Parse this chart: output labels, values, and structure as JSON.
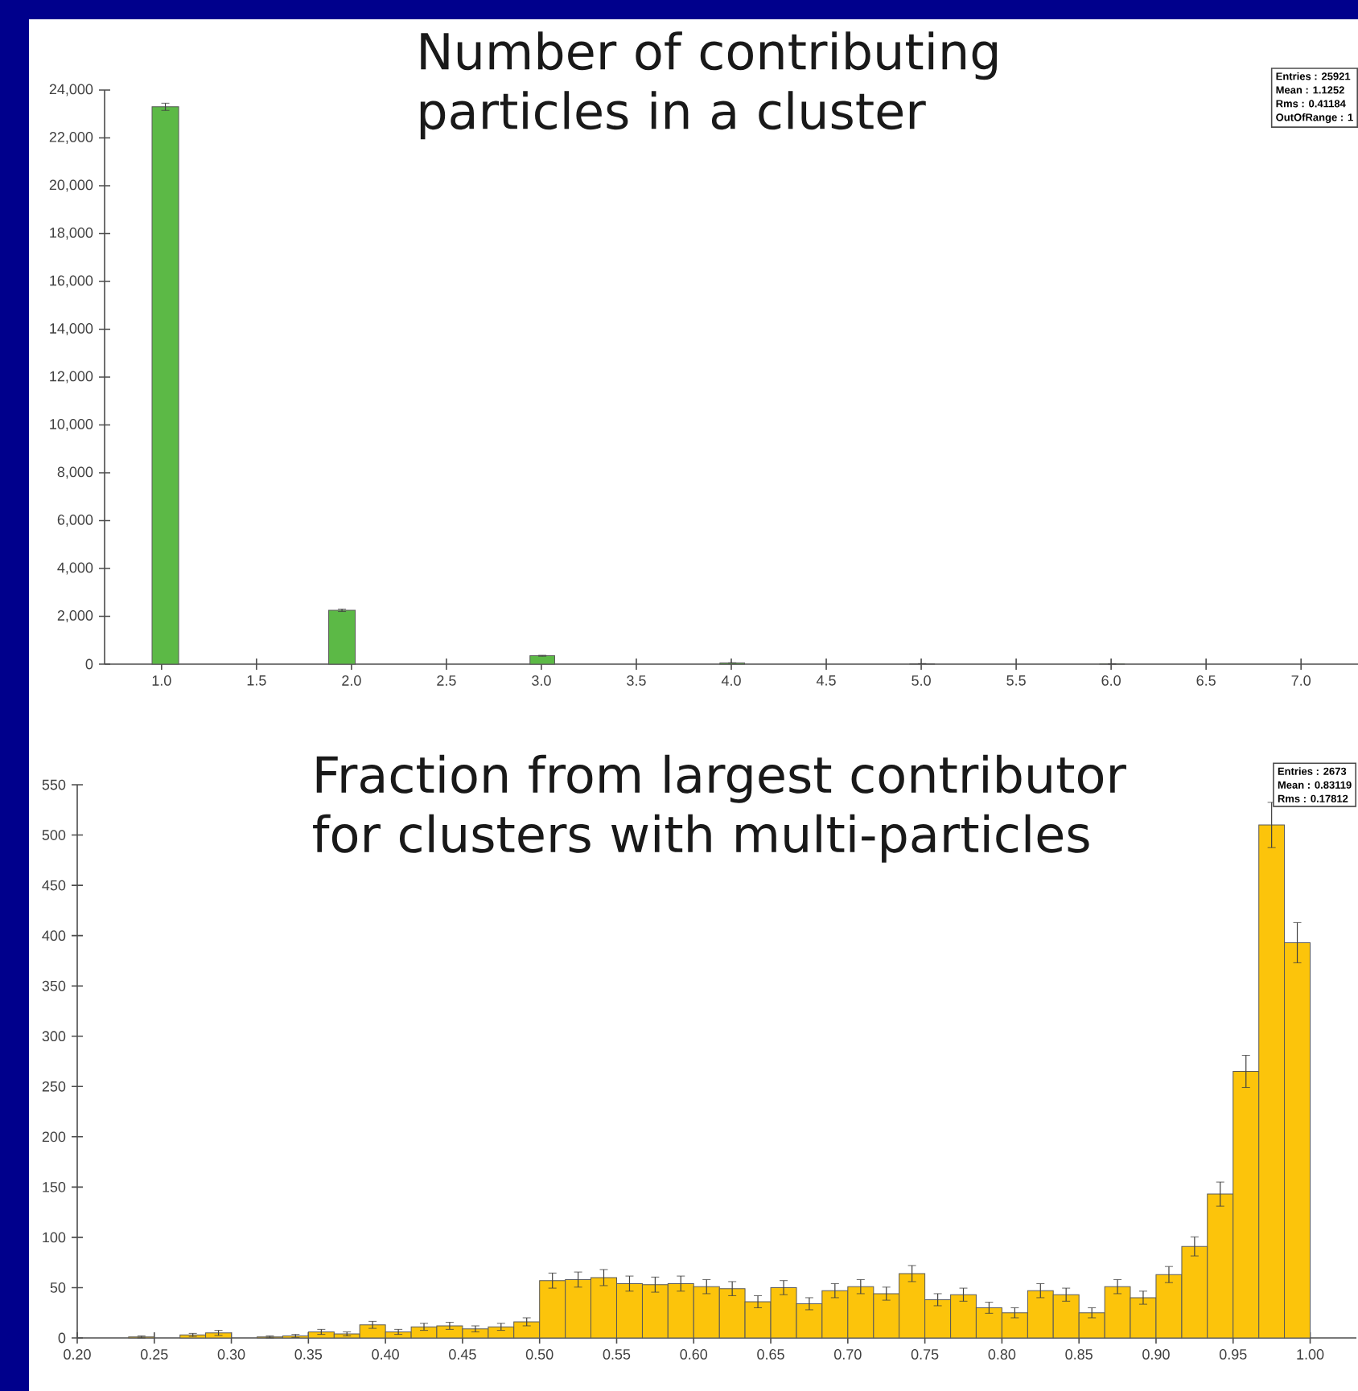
{
  "chart_data": [
    {
      "type": "histogram",
      "title": "Number of contributing particles in a cluster",
      "color": "#5cb946",
      "bins": [
        0.95,
        1.09,
        1.88,
        2.02,
        2.94,
        3.07,
        3.94,
        4.07,
        4.94,
        5.07,
        5.94,
        6.07
      ],
      "values": [
        23300,
        0,
        2250,
        0,
        350,
        0,
        50,
        0,
        20,
        0,
        10
      ],
      "errors": [
        150,
        null,
        50,
        null,
        20,
        null,
        7,
        null,
        4,
        null,
        3
      ],
      "xlim": [
        0.7,
        7.3
      ],
      "xticks": [
        {
          "value": 1,
          "label": "1.0"
        },
        {
          "value": 1.5,
          "label": "1.5"
        },
        {
          "value": 2,
          "label": "2.0"
        },
        {
          "value": 2.5,
          "label": "2.5"
        },
        {
          "value": 3,
          "label": "3.0"
        },
        {
          "value": 3.5,
          "label": "3.5"
        },
        {
          "value": 4,
          "label": "4.0"
        },
        {
          "value": 4.5,
          "label": "4.5"
        },
        {
          "value": 5,
          "label": "5.0"
        },
        {
          "value": 5.5,
          "label": "5.5"
        },
        {
          "value": 6,
          "label": "6.0"
        },
        {
          "value": 6.5,
          "label": "6.5"
        },
        {
          "value": 7,
          "label": "7.0"
        }
      ],
      "ylim": [
        0,
        24000
      ],
      "yticks": [
        0,
        {
          "value": 2000,
          "label": "2,000"
        },
        {
          "value": 4000,
          "label": "4,000"
        },
        {
          "value": 6000,
          "label": "6,000"
        },
        {
          "value": 8000,
          "label": "8,000"
        },
        {
          "value": 10000,
          "label": "10,000"
        },
        {
          "value": 12000,
          "label": "12,000"
        },
        {
          "value": 14000,
          "label": "14,000"
        },
        {
          "value": 16000,
          "label": "16,000"
        },
        {
          "value": 18000,
          "label": "18,000"
        },
        {
          "value": 20000,
          "label": "20,000"
        },
        {
          "value": 22000,
          "label": "22,000"
        },
        {
          "value": 24000,
          "label": "24,000"
        }
      ],
      "annotations": [
        "Entries : 25921",
        "Mean : 1.1252",
        "Rms : 0.41184",
        "OutOfRange : 1"
      ]
    },
    {
      "type": "histogram",
      "title": "Fraction from largest contributor for clusters with multi-particles",
      "color": "#fcc40b",
      "bins": [
        0.2,
        0.2167,
        0.2333,
        0.25,
        0.2667,
        0.2833,
        0.3,
        0.3167,
        0.3333,
        0.35,
        0.3667,
        0.3833,
        0.4,
        0.4167,
        0.4333,
        0.45,
        0.4667,
        0.4833,
        0.5,
        0.5167,
        0.5333,
        0.55,
        0.5667,
        0.5833,
        0.6,
        0.6167,
        0.6333,
        0.65,
        0.6667,
        0.6833,
        0.7,
        0.7167,
        0.7333,
        0.75,
        0.7667,
        0.7833,
        0.8,
        0.8167,
        0.8333,
        0.85,
        0.8667,
        0.8833,
        0.9,
        0.9167,
        0.9333,
        0.95,
        0.9667,
        0.9833,
        1.0
      ],
      "values": [
        0,
        0,
        1,
        0,
        3,
        5,
        0,
        1,
        2,
        6,
        4,
        13,
        6,
        11,
        12,
        9,
        11,
        16,
        57,
        58,
        60,
        54,
        53,
        54,
        51,
        49,
        36,
        50,
        34,
        47,
        51,
        44,
        64,
        38,
        43,
        30,
        25,
        47,
        43,
        25,
        51,
        40,
        63,
        91,
        143,
        265,
        510,
        393
      ],
      "errors": [
        null,
        null,
        1,
        null,
        1.5,
        2.5,
        null,
        1,
        1.5,
        2.5,
        2,
        3.5,
        2.5,
        3.5,
        3.5,
        3,
        3.5,
        4,
        7.5,
        7.5,
        8,
        7.5,
        7.5,
        7.5,
        7,
        7,
        6,
        7,
        6,
        7,
        7,
        6.5,
        8,
        6,
        6.5,
        5.5,
        5,
        7,
        6.5,
        5,
        7,
        6.5,
        8,
        9.5,
        12,
        16,
        22.5,
        20
      ],
      "xlim": [
        0.2,
        1.03
      ],
      "xticks": [
        {
          "value": 0.2,
          "label": "0.20"
        },
        {
          "value": 0.25,
          "label": "0.25"
        },
        {
          "value": 0.3,
          "label": "0.30"
        },
        {
          "value": 0.35,
          "label": "0.35"
        },
        {
          "value": 0.4,
          "label": "0.40"
        },
        {
          "value": 0.45,
          "label": "0.45"
        },
        {
          "value": 0.5,
          "label": "0.50"
        },
        {
          "value": 0.55,
          "label": "0.55"
        },
        {
          "value": 0.6,
          "label": "0.60"
        },
        {
          "value": 0.65,
          "label": "0.65"
        },
        {
          "value": 0.7,
          "label": "0.70"
        },
        {
          "value": 0.75,
          "label": "0.75"
        },
        {
          "value": 0.8,
          "label": "0.80"
        },
        {
          "value": 0.85,
          "label": "0.85"
        },
        {
          "value": 0.9,
          "label": "0.90"
        },
        {
          "value": 0.95,
          "label": "0.95"
        },
        {
          "value": 1.0,
          "label": "1.00"
        }
      ],
      "ylim": [
        0,
        550
      ],
      "yticks": [
        0,
        50,
        100,
        150,
        200,
        250,
        300,
        350,
        400,
        450,
        500,
        550
      ],
      "annotations": [
        "Entries : 2673",
        "Mean : 0.83119",
        "Rms : 0.17812"
      ]
    }
  ]
}
